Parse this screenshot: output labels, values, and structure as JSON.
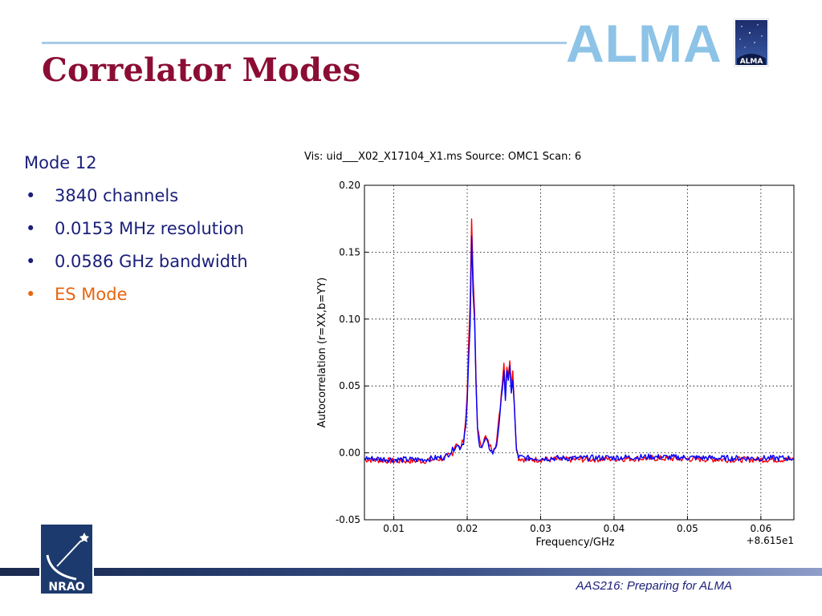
{
  "slide": {
    "title": "Correlator Modes",
    "brand": "ALMA",
    "alma_logo_text": "ALMA",
    "nrao_logo_text": "NRAO",
    "footer": "AAS216: Preparing for ALMA"
  },
  "content": {
    "mode_heading": "Mode 12",
    "bullet_glyph": "•",
    "bullets": [
      {
        "text": "3840 channels",
        "highlight": false
      },
      {
        "text": "0.0153 MHz resolution",
        "highlight": false
      },
      {
        "text": "0.0586 GHz bandwidth",
        "highlight": false
      },
      {
        "text": "ES Mode",
        "highlight": true
      }
    ]
  },
  "colors": {
    "title": "#8b0d34",
    "text": "#1a1f7a",
    "highlight": "#e8650f",
    "brand": "#8dc3e6",
    "series_r": "#ff0000",
    "series_b": "#0000ff"
  },
  "chart_data": {
    "type": "line",
    "title": "Vis: uid___X02_X17104_X1.ms Source: OMC1 Scan: 6",
    "xlabel": "Frequency/GHz",
    "ylabel": "Autocorrelation (r=XX,b=YY)",
    "x_offset_label": "+8.615e1",
    "xlim": [
      0.006,
      0.0645
    ],
    "ylim": [
      -0.05,
      0.2
    ],
    "grid": true,
    "x_ticks": [
      0.01,
      0.02,
      0.03,
      0.04,
      0.05,
      0.06
    ],
    "x_tick_labels": [
      "0.01",
      "0.02",
      "0.03",
      "0.04",
      "0.05",
      "0.06"
    ],
    "y_ticks": [
      -0.05,
      0.0,
      0.05,
      0.1,
      0.15,
      0.2
    ],
    "y_tick_labels": [
      "-0.05",
      "0.00",
      "0.05",
      "0.10",
      "0.15",
      "0.20"
    ],
    "series": [
      {
        "color": "#ff0000",
        "x": [
          0.006,
          0.01,
          0.014,
          0.017,
          0.018,
          0.0185,
          0.019,
          0.0195,
          0.0198,
          0.02,
          0.0202,
          0.0204,
          0.0206,
          0.0208,
          0.021,
          0.0212,
          0.0214,
          0.0217,
          0.022,
          0.0225,
          0.023,
          0.0235,
          0.024,
          0.0245,
          0.0248,
          0.025,
          0.0252,
          0.0254,
          0.0256,
          0.0258,
          0.026,
          0.0262,
          0.0264,
          0.0267,
          0.027,
          0.028,
          0.035,
          0.045,
          0.055,
          0.0645
        ],
        "y": [
          -0.005,
          -0.006,
          -0.006,
          -0.004,
          0.0,
          0.008,
          0.003,
          0.01,
          0.025,
          0.045,
          0.085,
          0.11,
          0.175,
          0.13,
          0.105,
          0.055,
          0.02,
          0.008,
          0.006,
          0.012,
          0.006,
          0.002,
          0.008,
          0.035,
          0.055,
          0.068,
          0.045,
          0.066,
          0.058,
          0.07,
          0.05,
          0.06,
          0.04,
          0.004,
          -0.004,
          -0.005,
          -0.005,
          -0.004,
          -0.005,
          -0.005
        ]
      },
      {
        "color": "#0000ff",
        "x": [
          0.006,
          0.01,
          0.014,
          0.017,
          0.018,
          0.0185,
          0.019,
          0.0195,
          0.0198,
          0.02,
          0.0202,
          0.0204,
          0.0206,
          0.0208,
          0.021,
          0.0212,
          0.0214,
          0.0217,
          0.022,
          0.0225,
          0.023,
          0.0235,
          0.024,
          0.0245,
          0.0248,
          0.025,
          0.0252,
          0.0254,
          0.0256,
          0.0258,
          0.026,
          0.0262,
          0.0264,
          0.0267,
          0.027,
          0.028,
          0.035,
          0.045,
          0.055,
          0.0645
        ],
        "y": [
          -0.004,
          -0.005,
          -0.005,
          -0.003,
          0.002,
          0.006,
          0.004,
          0.008,
          0.022,
          0.038,
          0.07,
          0.095,
          0.16,
          0.12,
          0.098,
          0.05,
          0.018,
          0.006,
          0.004,
          0.01,
          0.004,
          0.0,
          0.006,
          0.03,
          0.05,
          0.062,
          0.04,
          0.06,
          0.052,
          0.064,
          0.046,
          0.055,
          0.036,
          0.002,
          -0.003,
          -0.004,
          -0.004,
          -0.003,
          -0.004,
          -0.004
        ]
      }
    ]
  }
}
